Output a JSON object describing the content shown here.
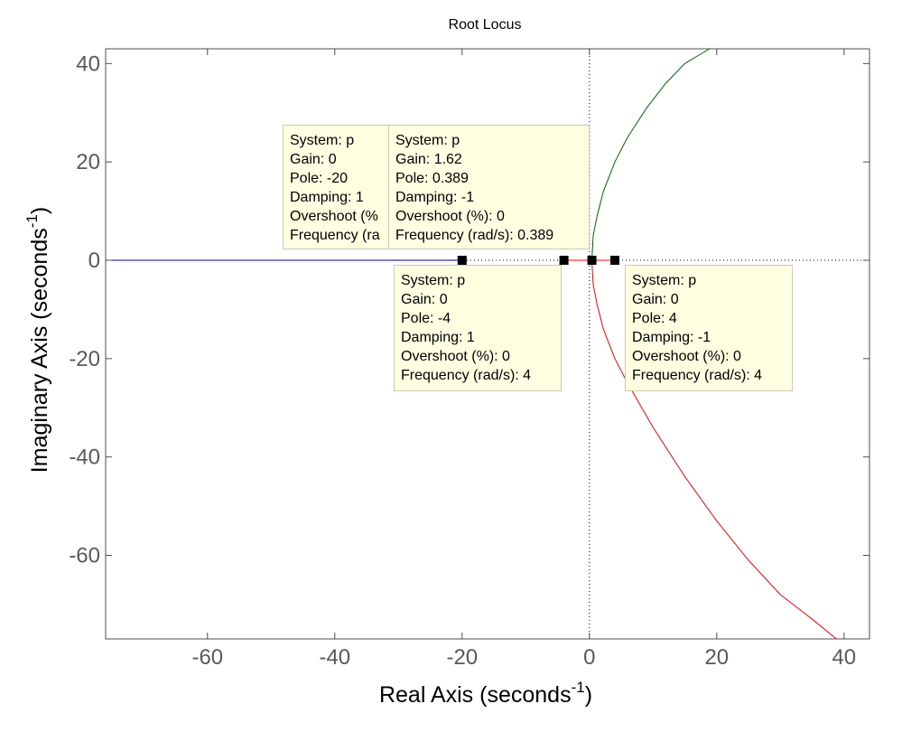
{
  "chart_data": {
    "type": "line",
    "title": "Root Locus",
    "xlabel": "Real Axis (seconds",
    "xlabel_sup": "-1",
    "xlabel_close": ")",
    "ylabel": "Imaginary Axis (seconds",
    "ylabel_sup": "-1",
    "ylabel_close": ")",
    "xlim": [
      -76,
      44
    ],
    "ylim": [
      -77,
      43
    ],
    "xticks": [
      -60,
      -40,
      -20,
      0,
      20,
      40
    ],
    "yticks": [
      -60,
      -40,
      -20,
      0,
      20,
      40
    ],
    "grid": false,
    "colors": {
      "blue": "#000080",
      "green": "#006400",
      "red": "#ff0000",
      "axis": "#4d4d4d",
      "tick_label": "#595959"
    },
    "series": [
      {
        "color": "blue",
        "x": [
          -76,
          -20
        ],
        "y": [
          0,
          0
        ]
      },
      {
        "color": "red",
        "x": [
          -4,
          0.389
        ],
        "y": [
          0,
          0
        ]
      },
      {
        "color": "red",
        "x": [
          4,
          0.389
        ],
        "y": [
          0,
          0
        ]
      },
      {
        "color": "green",
        "x": [
          0.389,
          0.6,
          1.2,
          2.2,
          4,
          6,
          9,
          12,
          15,
          18.9
        ],
        "y": [
          0,
          5,
          9,
          14,
          20,
          25,
          31,
          36,
          40,
          43
        ]
      },
      {
        "color": "red",
        "x": [
          0.389,
          0.6,
          1.2,
          2.2,
          4,
          6,
          10,
          15,
          20,
          25,
          30,
          35,
          38.8
        ],
        "y": [
          0,
          -5,
          -9,
          -14,
          -20,
          -25,
          -34,
          -44,
          -53,
          -61,
          -68,
          -73,
          -77
        ]
      }
    ],
    "markers": [
      {
        "x": -20,
        "y": 0
      },
      {
        "x": -4,
        "y": 0
      },
      {
        "x": 0.389,
        "y": 0
      },
      {
        "x": 4,
        "y": 0
      }
    ],
    "annotations": [
      {
        "lines": [
          "System: p",
          "Gain: 0",
          "Pole: -20",
          "Damping: 1",
          "Overshoot (%",
          "Frequency (ra"
        ]
      },
      {
        "lines": [
          "System: p",
          "Gain: 1.62",
          "Pole: 0.389",
          "Damping: -1",
          "Overshoot (%): 0",
          "Frequency (rad/s): 0.389"
        ]
      },
      {
        "lines": [
          "System: p",
          "Gain: 0",
          "Pole: -4",
          "Damping: 1",
          "Overshoot (%): 0",
          "Frequency (rad/s): 4"
        ]
      },
      {
        "lines": [
          "System: p",
          "Gain: 0",
          "Pole: 4",
          "Damping: -1",
          "Overshoot (%): 0",
          "Frequency (rad/s): 4"
        ]
      }
    ]
  }
}
